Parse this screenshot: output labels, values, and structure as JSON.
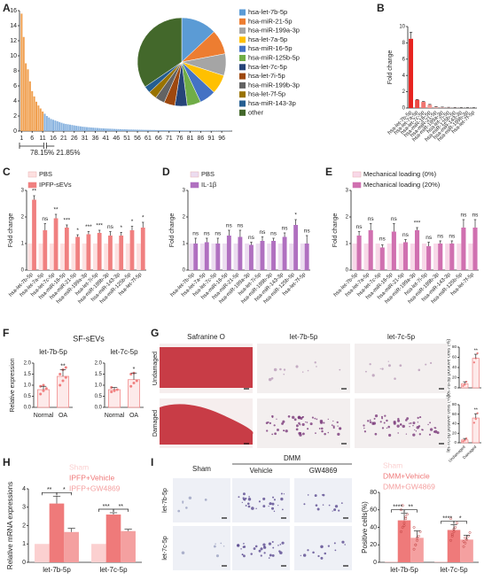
{
  "panel_letters": [
    "A",
    "B",
    "C",
    "D",
    "E",
    "F",
    "G",
    "H",
    "I"
  ],
  "chart_data": [
    {
      "type": "bar",
      "ylim": [
        0,
        16
      ],
      "yticks": [
        0,
        2,
        4,
        6,
        8,
        10,
        12,
        14,
        16
      ],
      "xlim": [
        0,
        101
      ],
      "xticks": [
        1,
        6,
        11,
        16,
        21,
        26,
        31,
        36,
        41,
        46,
        51,
        56,
        61,
        66,
        71,
        76,
        81,
        86,
        91,
        96
      ],
      "series": [
        {
          "color": "#f0a050",
          "values": [
            15.6,
            12.5,
            9.0,
            8.2,
            6.6,
            5.3,
            4.6,
            3.9,
            3.4,
            3.0,
            2.6
          ]
        },
        {
          "color": "#8ab4e0",
          "values": [
            2.3,
            2.0,
            1.8,
            1.6,
            1.5,
            1.4,
            1.3,
            1.2,
            1.1,
            1.0,
            0.95,
            0.9,
            0.85,
            0.8,
            0.75,
            0.7,
            0.66,
            0.62,
            0.58,
            0.55,
            0.52,
            0.5,
            0.47,
            0.45,
            0.43,
            0.41,
            0.39,
            0.37,
            0.35,
            0.34,
            0.32,
            0.31,
            0.3,
            0.28,
            0.27,
            0.26,
            0.25,
            0.24,
            0.23,
            0.22,
            0.21,
            0.2,
            0.2,
            0.19,
            0.18,
            0.18,
            0.17,
            0.16,
            0.16,
            0.15,
            0.15,
            0.14,
            0.14,
            0.13,
            0.13,
            0.12,
            0.12,
            0.12,
            0.11,
            0.11,
            0.1,
            0.1,
            0.1,
            0.09,
            0.09,
            0.09,
            0.08,
            0.08,
            0.08,
            0.08,
            0.07,
            0.07,
            0.07,
            0.07,
            0.06,
            0.06,
            0.06,
            0.06,
            0.05,
            0.05,
            0.05,
            0.05,
            0.05,
            0.04,
            0.04,
            0.04,
            0.04,
            0.04,
            0.03
          ]
        }
      ],
      "annotations": [
        "78.15%",
        "21.85%"
      ]
    },
    {
      "type": "pie",
      "categories": [
        "hsa-let-7b-5p",
        "hsa-miR-21-5p",
        "hsa-miR-199a-3p",
        "hsa-let-7a-5p",
        "hsa-miR-16-5p",
        "hsa-miR-125b-5p",
        "hsa-let-7c-5p",
        "hsa-let-7i-5p",
        "hsa-miR-199b-3p",
        "hsa-let-7f-5p",
        "hsa-miR-143-3p",
        "other"
      ],
      "values": [
        13,
        9,
        8,
        7,
        6,
        5,
        4.5,
        4,
        3.5,
        3,
        2.5,
        34.5
      ],
      "colors": [
        "#5b9bd5",
        "#ed7d31",
        "#a5a5a5",
        "#ffc000",
        "#4472c4",
        "#70ad47",
        "#264478",
        "#9e480e",
        "#636363",
        "#997300",
        "#255e91",
        "#43682b"
      ]
    },
    {
      "type": "bar",
      "ylabel": "Fold change",
      "ylim": [
        0,
        10
      ],
      "yticks": [
        0,
        2,
        4,
        6,
        8,
        10
      ],
      "categories": [
        "hsa-let-7b-5p",
        "hsa-let-7a-5p",
        "hsa-let-7c-5p",
        "hsa-miR-16-5p",
        "hsa-miR-21-5p",
        "hsa-miR-199a-3p",
        "hsa-let-7i-5p",
        "hsa-miR-125b-5p",
        "hsa-miR-143-3p",
        "hsa-miR-199b-3p",
        "hsa-let-7f-5p"
      ],
      "values": [
        8.5,
        1.0,
        0.75,
        0.4,
        0.15,
        0.1,
        0.08,
        0.06,
        0.05,
        0.04,
        0.03
      ],
      "errors": [
        0.8,
        0.05,
        0.05,
        0.05,
        0.02,
        0.02,
        0.01,
        0.01,
        0.01,
        0.01,
        0.01
      ],
      "colors": [
        "#e8231f",
        "#ec4a44",
        "#f07570",
        "#f49a95",
        "#f6b5b2",
        "#f8c6c4",
        "#f9d2d0",
        "#fadcdb",
        "#fbe3e2",
        "#fce9e8",
        "#fdeeee"
      ]
    },
    {
      "type": "grouped_bar",
      "ylabel": "Fold change",
      "ylim": [
        0,
        3
      ],
      "yticks": [
        0,
        1,
        2,
        3
      ],
      "categories": [
        "hsa-let-7b-5p",
        "hsa-let-7a-5p",
        "hsa-let-7c-5p",
        "hsa-miR-16-5p",
        "hsa-miR-21-5p",
        "hsa-miR-199a-3p",
        "hsa-let-7i-5p",
        "hsa-miR-199b-3p",
        "hsa-miR-143-3p",
        "hsa-miR-125b-5p",
        "hsa-let-7f-5p"
      ],
      "series": [
        {
          "name": "PBS",
          "color": "#fde0e0",
          "values": [
            1,
            1,
            1,
            1,
            1,
            1,
            1,
            1,
            1,
            1,
            1
          ]
        },
        {
          "name": "IPFP-sEVs",
          "color": "#f08080",
          "values": [
            2.65,
            1.5,
            1.95,
            1.6,
            1.25,
            1.35,
            1.4,
            1.3,
            1.3,
            1.5,
            1.6
          ],
          "errors": [
            0.15,
            0.25,
            0.15,
            0.1,
            0.08,
            0.1,
            0.1,
            0.15,
            0.12,
            0.15,
            0.2
          ]
        }
      ],
      "significance": [
        "**",
        "ns",
        "**",
        "***",
        "*",
        "***",
        "***",
        "ns",
        "*",
        "*",
        "*"
      ]
    },
    {
      "type": "grouped_bar",
      "ylabel": "Fold change",
      "ylim": [
        0,
        3
      ],
      "yticks": [
        0,
        1,
        2,
        3
      ],
      "categories": [
        "hsa-let-7b-5p",
        "hsa-let-7a-5p",
        "hsa-let-7c-5p",
        "hsa-miR-16-5p",
        "hsa-miR-21-5p",
        "hsa-miR-199a-3p",
        "hsa-let-7i-5p",
        "hsa-miR-199b-3p",
        "hsa-miR-143-3p",
        "hsa-miR-125b-5p",
        "hsa-let-7f-5p"
      ],
      "series": [
        {
          "name": "PBS",
          "color": "#ecdcf0",
          "values": [
            1,
            1,
            1,
            1,
            1,
            1,
            1,
            1,
            1,
            1,
            1
          ]
        },
        {
          "name": "IL-1β",
          "color": "#b070c0",
          "values": [
            1.0,
            1.05,
            1.0,
            1.3,
            1.25,
            0.95,
            1.1,
            1.1,
            1.25,
            1.7,
            1.0
          ],
          "errors": [
            0.2,
            0.15,
            0.2,
            0.2,
            0.25,
            0.1,
            0.15,
            0.1,
            0.15,
            0.2,
            0.3
          ]
        }
      ],
      "significance": [
        "ns",
        "ns",
        "ns",
        "ns",
        "ns",
        "ns",
        "ns",
        "ns",
        "ns",
        "*",
        "ns"
      ]
    },
    {
      "type": "grouped_bar",
      "ylabel": "Fold change",
      "ylim": [
        0,
        3
      ],
      "yticks": [
        0,
        1,
        2,
        3
      ],
      "categories": [
        "hsa-let-7b-5p",
        "hsa-let-7a-5p",
        "hsa-let-7c-5p",
        "hsa-miR-16-5p",
        "hsa-miR-21-5p",
        "hsa-miR-199a-3p",
        "hsa-let-7i-5p",
        "hsa-miR-199b-3p",
        "hsa-miR-143-3p",
        "hsa-miR-125b-5p",
        "hsa-let-7f-5p"
      ],
      "series": [
        {
          "name": "Mechanical loading (0%)",
          "color": "#f8d8e8",
          "values": [
            1,
            1,
            1,
            1,
            1,
            1,
            1,
            1,
            1,
            1,
            1
          ]
        },
        {
          "name": "Mechanical loading (20%)",
          "color": "#d070b0",
          "values": [
            1.3,
            1.5,
            0.85,
            1.45,
            1.05,
            1.5,
            0.9,
            1.0,
            1.0,
            1.6,
            1.6
          ],
          "errors": [
            0.15,
            0.25,
            0.1,
            0.3,
            0.1,
            0.1,
            0.15,
            0.1,
            0.1,
            0.3,
            0.3
          ]
        }
      ],
      "significance": [
        "ns",
        "ns",
        "ns",
        "ns",
        "ns",
        "***",
        "ns",
        "ns",
        "ns",
        "ns",
        "ns"
      ]
    },
    {
      "type": "dot_bar",
      "group_title": "SF-sEVs",
      "title": "let-7b-5p",
      "ylabel": "Relative expression",
      "ylim": [
        0,
        2
      ],
      "yticks": [
        {
          "value": 0,
          "label": "0.0"
        },
        0.5,
        {
          "value": 1,
          "label": "1.0"
        },
        1.5,
        {
          "value": 2,
          "label": "2.0"
        }
      ],
      "categories": [
        "Normal",
        "OA"
      ],
      "values": [
        0.8,
        1.4
      ],
      "errors": [
        0.15,
        0.3
      ],
      "points": [
        [
          0.6,
          0.75,
          0.85,
          0.95,
          1.0
        ],
        [
          1.0,
          1.2,
          1.35,
          1.5,
          1.7,
          1.8
        ]
      ],
      "significance": [
        null,
        "**"
      ],
      "color": "#f08080"
    },
    {
      "type": "dot_bar",
      "title": "let-7c-5p",
      "ylim": [
        0,
        2
      ],
      "yticks": [
        {
          "value": 0,
          "label": "0.0"
        },
        0.5,
        {
          "value": 1,
          "label": "1.0"
        },
        1.5,
        {
          "value": 2,
          "label": "2.0"
        }
      ],
      "categories": [
        "Normal",
        "OA"
      ],
      "values": [
        0.8,
        1.25
      ],
      "errors": [
        0.1,
        0.3
      ],
      "points": [
        [
          0.7,
          0.75,
          0.8,
          0.9
        ],
        [
          0.95,
          1.1,
          1.2,
          1.5,
          1.55
        ]
      ],
      "significance": [
        null,
        "*"
      ],
      "color": "#f08080"
    },
    {
      "type": "dot_bar",
      "ylabel": "let-7b-5p positive cells (%)",
      "ylim": [
        0,
        80
      ],
      "yticks": [
        0,
        20,
        40,
        60,
        80
      ],
      "categories": [
        null,
        null
      ],
      "values": [
        8,
        58
      ],
      "errors": [
        4,
        8
      ],
      "points": [
        [
          4,
          6,
          12
        ],
        [
          50,
          58,
          68
        ]
      ],
      "significance": [
        null,
        "**"
      ],
      "color": "#f08080"
    },
    {
      "type": "dot_bar",
      "ylabel": "let-7c-5p positive cells (%)",
      "ylim": [
        0,
        80
      ],
      "yticks": [
        0,
        20,
        40,
        60,
        80
      ],
      "categories": [
        "Undamaged",
        "Damaged"
      ],
      "values": [
        6,
        52
      ],
      "errors": [
        3,
        9
      ],
      "points": [
        [
          3,
          5,
          9
        ],
        [
          42,
          50,
          62
        ]
      ],
      "significance": [
        null,
        "**"
      ],
      "color": "#f08080"
    },
    {
      "type": "grouped_bar",
      "ylabel": "Relative mRNA expressions",
      "ylim": [
        0,
        4
      ],
      "yticks": [
        0,
        1,
        2,
        3,
        4
      ],
      "legend_text_colored": true,
      "categories": [
        "let-7b-5p",
        "let-7c-5p"
      ],
      "series": [
        {
          "name": "Sham",
          "color": "#fbd0d0",
          "values": [
            1,
            1
          ]
        },
        {
          "name": "IPFP+Vehicle",
          "color": "#ef7a7a",
          "values": [
            3.2,
            2.6
          ],
          "errors": [
            0.4,
            0.1
          ]
        },
        {
          "name": "IPFP+GW4869",
          "color": "#f4a0a0",
          "values": [
            1.65,
            1.7
          ],
          "errors": [
            0.2,
            0.1
          ]
        }
      ],
      "comparisons": [
        "**",
        "*",
        "***",
        "**"
      ]
    },
    {
      "type": "grouped_bar",
      "ylabel": "Positive cells(%)",
      "ylim": [
        0,
        80
      ],
      "yticks": [
        0,
        20,
        40,
        60,
        80
      ],
      "legend_text_colored": true,
      "categories": [
        "let-7b-5p",
        "let-7c-5p"
      ],
      "series": [
        {
          "name": "Sham",
          "color": "#fbd0d0",
          "values": [
            1,
            1
          ]
        },
        {
          "name": "DMM+Vehicle",
          "color": "#ef7a7a",
          "values": [
            48,
            37
          ],
          "errors": [
            8,
            6
          ],
          "points": [
            [
              35,
              40,
              45,
              50,
              55,
              60,
              65,
              42,
              52
            ],
            [
              25,
              30,
              35,
              40,
              45,
              50,
              32,
              38
            ]
          ]
        },
        {
          "name": "DMM+GW4869",
          "color": "#f4a0a0",
          "values": [
            28,
            26
          ],
          "errors": [
            8,
            5
          ],
          "points": [
            [
              15,
              20,
              25,
              30,
              35,
              40,
              20,
              28
            ],
            [
              18,
              22,
              26,
              30,
              34,
              24,
              28
            ]
          ]
        }
      ],
      "comparisons": [
        "****",
        "**",
        "****",
        "*"
      ]
    }
  ],
  "image_panels": [
    {
      "columns": [
        "Safranine O",
        "let-7b-5p",
        "let-7c-5p"
      ],
      "rows": [
        "Undamaged",
        "Damaged"
      ]
    },
    {
      "group": "DMM",
      "columns": [
        "Sham",
        "Vehicle",
        "GW4869"
      ],
      "rows": [
        "let-7b-5p",
        "let-7c-5p"
      ]
    }
  ]
}
